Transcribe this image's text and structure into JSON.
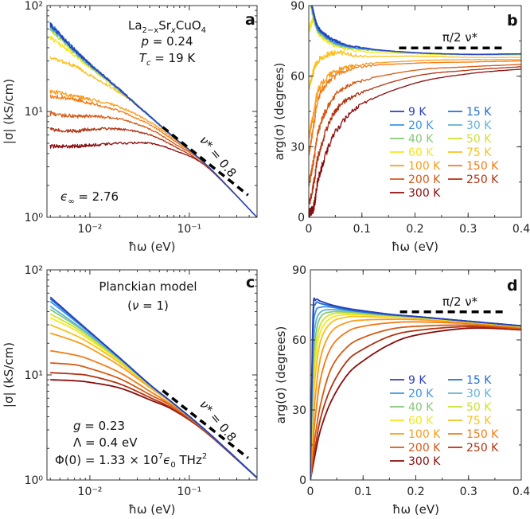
{
  "annotations": {
    "a": {
      "panel_label": "a",
      "material": [
        "La",
        "2−x",
        "Sr",
        "x",
        "CuO",
        "4"
      ],
      "doping_sym": "p",
      "doping_rest": " = 0.24",
      "tc_sym": "T",
      "tc_sub": "c",
      "tc_rest": " = 19 K",
      "eps_sym": "ϵ",
      "eps_sub": "∞",
      "eps_rest": " = 2.76",
      "ref_sym": "ν*",
      "ref_rest": " = 0.8"
    },
    "b": {
      "panel_label": "b",
      "ref_pi": "π",
      "ref_two": "2",
      "ref_nu": "ν*"
    },
    "c": {
      "panel_label": "c",
      "model": "Planckian model",
      "nu_open": "(",
      "nu_sym": "ν",
      "nu_rest": " = 1)",
      "g_sym": "g",
      "g_rest": " = 0.23",
      "lambda": "Λ = 0.4 eV",
      "phi_main": "Φ(0) = 1.33 × 10",
      "phi_exp": "7",
      "phi_eps": "ϵ",
      "phi_eps_sub": "0",
      "phi_unit": " THz",
      "phi_unit_exp": "2",
      "ref_sym": "ν*",
      "ref_rest": " = 0.8"
    },
    "d": {
      "panel_label": "d",
      "ref_pi": "π",
      "ref_two": "2",
      "ref_nu": "ν*"
    }
  },
  "chart_data": [
    {
      "panel": "a",
      "type": "line",
      "noisy": true,
      "xscale": "log",
      "yscale": "log",
      "xlim": [
        0.0037,
        0.48
      ],
      "ylim": [
        1,
        100
      ],
      "xlabel": "ħω (eV)",
      "ylabel": "|σ| (kS/cm)",
      "xticks": [
        0.01,
        0.1
      ],
      "xticklabels": [
        "10⁻²",
        "10⁻¹"
      ],
      "yticks": [
        1,
        10,
        100
      ],
      "yticklabels": [
        "10⁰",
        "10¹",
        "10²"
      ],
      "reference_line": {
        "label": "ν* = 0.8",
        "x": [
          0.054,
          0.39
        ],
        "y": [
          7.1,
          1.62
        ]
      },
      "x": [
        0.004,
        0.007,
        0.01,
        0.02,
        0.04,
        0.07,
        0.15,
        0.48
      ],
      "series": [
        {
          "name": "9 K",
          "color": "#2a3fb8",
          "values": [
            66,
            38,
            28,
            16,
            9,
            5.7,
            3.1,
            1.0
          ]
        },
        {
          "name": "15 K",
          "color": "#1f6fd6",
          "values": [
            67,
            38.5,
            28,
            16,
            9,
            5.7,
            3.1,
            1.0
          ]
        },
        {
          "name": "20 K",
          "color": "#3a94e6",
          "values": [
            65,
            38,
            28,
            16,
            9,
            5.7,
            3.1,
            1.0
          ]
        },
        {
          "name": "30 K",
          "color": "#62b3d6",
          "values": [
            63,
            37,
            27.5,
            16,
            9,
            5.7,
            3.1,
            1.0
          ]
        },
        {
          "name": "40 K",
          "color": "#86c879",
          "values": [
            61,
            36.5,
            27,
            15.8,
            9,
            5.7,
            3.1,
            1.0
          ]
        },
        {
          "name": "50 K",
          "color": "#cde22e",
          "values": [
            59,
            36,
            27,
            15.8,
            9,
            5.7,
            3.1,
            1.0
          ]
        },
        {
          "name": "60 K",
          "color": "#f6e71b",
          "values": [
            50,
            34,
            26,
            15.5,
            9,
            5.7,
            3.1,
            1.0
          ]
        },
        {
          "name": "75 K",
          "color": "#fbc11c",
          "values": [
            32,
            27,
            22,
            15,
            9,
            5.7,
            3.1,
            1.0
          ]
        },
        {
          "name": "100 K",
          "color": "#fb9c1c",
          "values": [
            15.5,
            14,
            13,
            11,
            8,
            5.5,
            3.1,
            1.0
          ]
        },
        {
          "name": "150 K",
          "color": "#f17b19",
          "values": [
            14,
            13,
            12,
            10,
            7.5,
            5.3,
            3.1,
            1.0
          ]
        },
        {
          "name": "200 K",
          "color": "#d65a15",
          "values": [
            9.5,
            9,
            9,
            8.5,
            6.8,
            5.0,
            3.1,
            1.0
          ]
        },
        {
          "name": "250 K",
          "color": "#b03311",
          "values": [
            6.8,
            6.5,
            6.8,
            6.8,
            6.0,
            4.7,
            3.0,
            1.0
          ]
        },
        {
          "name": "300 K",
          "color": "#8b0c0c",
          "values": [
            4.7,
            4.7,
            4.8,
            5.0,
            5.0,
            4.3,
            3.0,
            1.0
          ]
        }
      ]
    },
    {
      "panel": "b",
      "type": "line",
      "noisy": true,
      "legend": "center-right",
      "xscale": "linear",
      "yscale": "linear",
      "xlim": [
        0,
        0.4
      ],
      "ylim": [
        0,
        90
      ],
      "xlabel": "ħω (eV)",
      "ylabel": "arg(σ) (degrees)",
      "xticks": [
        0,
        0.1,
        0.2,
        0.3,
        0.4
      ],
      "xticklabels": [
        "0",
        "0.1",
        "0.2",
        "0.3",
        "0.4"
      ],
      "yticks": [
        0,
        30,
        60,
        90
      ],
      "yticklabels": [
        "0",
        "30",
        "60",
        "90"
      ],
      "xminor": 0.05,
      "yminor": 15,
      "reference_line": {
        "label": "π/2 ν*",
        "x": [
          0.17,
          0.37
        ],
        "y": [
          72,
          72
        ]
      },
      "x": [
        0.001,
        0.01,
        0.02,
        0.05,
        0.1,
        0.2,
        0.3,
        0.4
      ],
      "series": [
        {
          "name": "9 K",
          "color": "#2a3fb8",
          "values": [
            96,
            86,
            80,
            75,
            72,
            70,
            69.3,
            69.5
          ]
        },
        {
          "name": "15 K",
          "color": "#1f6fd6",
          "values": [
            96,
            86,
            80,
            75,
            72,
            70,
            69.3,
            69.5
          ]
        },
        {
          "name": "20 K",
          "color": "#3a94e6",
          "values": [
            95,
            85,
            79.5,
            74.5,
            71.8,
            70,
            69.3,
            69.5
          ]
        },
        {
          "name": "30 K",
          "color": "#62b3d6",
          "values": [
            95,
            85,
            79.5,
            74.5,
            71.8,
            70,
            69.3,
            69.5
          ]
        },
        {
          "name": "40 K",
          "color": "#86c879",
          "values": [
            94,
            84,
            79,
            74,
            71.5,
            70,
            69.2,
            69.3
          ]
        },
        {
          "name": "50 K",
          "color": "#cde22e",
          "values": [
            93,
            84,
            79,
            74,
            71.5,
            69.8,
            69.2,
            69.3
          ]
        },
        {
          "name": "60 K",
          "color": "#f6e71b",
          "values": [
            80,
            84,
            78,
            73,
            70.5,
            69.5,
            69,
            69
          ]
        },
        {
          "name": "75 K",
          "color": "#fbc11c",
          "values": [
            55,
            63,
            67,
            70,
            68.5,
            68.5,
            68,
            68
          ]
        },
        {
          "name": "100 K",
          "color": "#fb9c1c",
          "values": [
            35,
            45,
            55,
            62,
            65,
            66.5,
            67,
            67
          ]
        },
        {
          "name": "150 K",
          "color": "#f17b19",
          "values": [
            28,
            40,
            52,
            60,
            64,
            65.5,
            66,
            66.5
          ]
        },
        {
          "name": "200 K",
          "color": "#d65a15",
          "values": [
            15,
            25,
            38,
            52,
            58,
            62.5,
            64,
            65
          ]
        },
        {
          "name": "250 K",
          "color": "#b03311",
          "values": [
            6,
            15,
            28,
            45,
            53,
            60,
            62.5,
            64
          ]
        },
        {
          "name": "300 K",
          "color": "#8b0c0c",
          "values": [
            2,
            5,
            18,
            36,
            48,
            57,
            61,
            63
          ]
        }
      ]
    },
    {
      "panel": "c",
      "type": "line",
      "noisy": false,
      "xscale": "log",
      "yscale": "log",
      "xlim": [
        0.0037,
        0.48
      ],
      "ylim": [
        1,
        100
      ],
      "xlabel": "ħω (eV)",
      "ylabel": "|σ| (kS/cm)",
      "xticks": [
        0.01,
        0.1
      ],
      "xticklabels": [
        "10⁻²",
        "10⁻¹"
      ],
      "yticks": [
        1,
        10,
        100
      ],
      "yticklabels": [
        "10⁰",
        "10¹",
        "10²"
      ],
      "reference_line": {
        "label": "ν* = 0.8",
        "x": [
          0.054,
          0.39
        ],
        "y": [
          7.1,
          1.62
        ]
      },
      "x": [
        0.004,
        0.007,
        0.01,
        0.02,
        0.04,
        0.07,
        0.15,
        0.48
      ],
      "series": [
        {
          "name": "9 K",
          "color": "#2a3fb8",
          "values": [
            55,
            34.5,
            25.7,
            14.5,
            8.1,
            5.3,
            2.9,
            1.05
          ]
        },
        {
          "name": "15 K",
          "color": "#1f6fd6",
          "values": [
            53,
            34,
            25.5,
            14.5,
            8.1,
            5.3,
            2.9,
            1.05
          ]
        },
        {
          "name": "20 K",
          "color": "#3a94e6",
          "values": [
            50,
            33,
            25,
            14.4,
            8.1,
            5.3,
            2.9,
            1.05
          ]
        },
        {
          "name": "30 K",
          "color": "#62b3d6",
          "values": [
            45,
            31,
            24,
            14.2,
            8,
            5.3,
            2.9,
            1.05
          ]
        },
        {
          "name": "40 K",
          "color": "#86c879",
          "values": [
            42,
            30,
            23.5,
            14,
            8,
            5.3,
            2.9,
            1.05
          ]
        },
        {
          "name": "50 K",
          "color": "#cde22e",
          "values": [
            38,
            28.5,
            22.5,
            13.8,
            8,
            5.3,
            2.9,
            1.05
          ]
        },
        {
          "name": "60 K",
          "color": "#f6e71b",
          "values": [
            35,
            27,
            21.5,
            13.5,
            7.9,
            5.3,
            2.9,
            1.05
          ]
        },
        {
          "name": "75 K",
          "color": "#fbc11c",
          "values": [
            30,
            24,
            20,
            13,
            7.8,
            5.2,
            2.9,
            1.05
          ]
        },
        {
          "name": "100 K",
          "color": "#fb9c1c",
          "values": [
            25,
            21,
            18,
            12.2,
            7.6,
            5.2,
            2.9,
            1.05
          ]
        },
        {
          "name": "150 K",
          "color": "#f17b19",
          "values": [
            17,
            15.5,
            14,
            10.5,
            7,
            5,
            2.9,
            1.05
          ]
        },
        {
          "name": "200 K",
          "color": "#d65a15",
          "values": [
            13,
            12.5,
            11.5,
            9.2,
            6.5,
            4.9,
            2.85,
            1.05
          ]
        },
        {
          "name": "250 K",
          "color": "#b03311",
          "values": [
            10.5,
            10.2,
            9.8,
            8.2,
            6.1,
            4.7,
            2.8,
            1.05
          ]
        },
        {
          "name": "300 K",
          "color": "#8b0c0c",
          "values": [
            9,
            8.8,
            8.5,
            7.5,
            5.8,
            4.6,
            2.8,
            1.05
          ]
        }
      ]
    },
    {
      "panel": "d",
      "type": "line",
      "noisy": false,
      "legend": "center-right",
      "xscale": "linear",
      "yscale": "linear",
      "xlim": [
        0,
        0.4
      ],
      "ylim": [
        0,
        90
      ],
      "xlabel": "ħω (eV)",
      "ylabel": "arg(σ) (degrees)",
      "xticks": [
        0,
        0.1,
        0.2,
        0.3,
        0.4
      ],
      "xticklabels": [
        "0",
        "0.1",
        "0.2",
        "0.3",
        "0.4"
      ],
      "yticks": [
        0,
        30,
        60,
        90
      ],
      "yticklabels": [
        "0",
        "30",
        "60",
        "90"
      ],
      "xminor": 0.05,
      "yminor": 15,
      "reference_line": {
        "label": "π/2 ν*",
        "x": [
          0.17,
          0.37
        ],
        "y": [
          72,
          72
        ]
      },
      "x": [
        0,
        0.005,
        0.01,
        0.02,
        0.04,
        0.07,
        0.1,
        0.15,
        0.2,
        0.3,
        0.4
      ],
      "series": [
        {
          "name": "9 K",
          "color": "#2a3fb8",
          "values": [
            0,
            70,
            77,
            76.5,
            75,
            73.5,
            72.5,
            71,
            70,
            68,
            66
          ]
        },
        {
          "name": "15 K",
          "color": "#1f6fd6",
          "values": [
            0,
            66,
            75.5,
            75.5,
            74.5,
            73,
            72,
            70.8,
            70,
            68,
            66
          ]
        },
        {
          "name": "20 K",
          "color": "#3a94e6",
          "values": [
            0,
            60,
            72,
            74,
            74,
            72.8,
            72,
            70.8,
            70,
            68,
            66
          ]
        },
        {
          "name": "30 K",
          "color": "#62b3d6",
          "values": [
            0,
            52,
            67,
            72,
            73,
            72.5,
            71.8,
            70.7,
            70,
            68,
            66
          ]
        },
        {
          "name": "40 K",
          "color": "#86c879",
          "values": [
            0,
            46,
            62,
            70,
            72,
            72,
            71.5,
            70.5,
            69.8,
            68,
            66
          ]
        },
        {
          "name": "50 K",
          "color": "#cde22e",
          "values": [
            0,
            40,
            57,
            67,
            71,
            71.5,
            71,
            70.3,
            69.7,
            67.8,
            65.8
          ]
        },
        {
          "name": "60 K",
          "color": "#f6e71b",
          "values": [
            0,
            35,
            52,
            64,
            69.5,
            70.8,
            70.7,
            70,
            69.5,
            67.8,
            65.8
          ]
        },
        {
          "name": "75 K",
          "color": "#fbc11c",
          "values": [
            0,
            30,
            46,
            60,
            67.5,
            69.8,
            70,
            69.7,
            69.3,
            67.7,
            65.7
          ]
        },
        {
          "name": "100 K",
          "color": "#fb9c1c",
          "values": [
            0,
            22,
            37,
            53,
            63.5,
            67.5,
            68.5,
            68.8,
            68.7,
            67.4,
            65.5
          ]
        },
        {
          "name": "150 K",
          "color": "#f17b19",
          "values": [
            0,
            16,
            28,
            44,
            57,
            63.5,
            65.8,
            67.3,
            67.7,
            67,
            65.3
          ]
        },
        {
          "name": "200 K",
          "color": "#d65a15",
          "values": [
            0,
            11,
            20,
            33,
            48,
            57,
            61,
            64.5,
            65.8,
            66.3,
            64.8
          ]
        },
        {
          "name": "250 K",
          "color": "#b03311",
          "values": [
            0,
            8,
            15,
            27,
            40,
            51,
            56,
            61.5,
            64,
            65.7,
            64.5
          ]
        },
        {
          "name": "300 K",
          "color": "#8b0c0c",
          "values": [
            0,
            6,
            12,
            22,
            34,
            45,
            51,
            58,
            62,
            65,
            64.3
          ]
        }
      ]
    }
  ]
}
